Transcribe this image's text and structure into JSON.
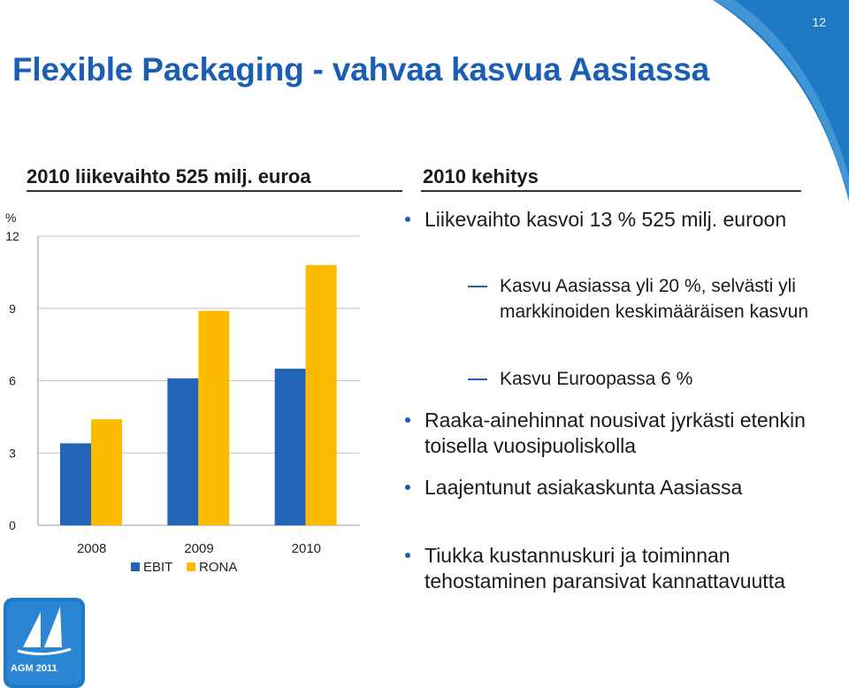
{
  "page": {
    "slide_number": "12",
    "title": "Flexible Packaging - vahvaa kasvua Aasiassa",
    "footer": "AGM 2011"
  },
  "colors": {
    "title_blue": "#1b5fb4",
    "ebit_blue": "#2264b8",
    "rona_yellow": "#fdbb00",
    "deco_blue": "#1f7ac6"
  },
  "left": {
    "heading": "2010 liikevaihto 525 milj. euroa"
  },
  "right": {
    "heading": "2010 kehitys",
    "bullets": [
      {
        "text": "Liikevaihto kasvoi 13 % 525 milj. euroon",
        "subs": [
          "Kasvu Aasiassa yli 20 %, selvästi yli markkinoiden keskimääräisen kasvun",
          "Kasvu Euroopassa 6 %"
        ]
      },
      {
        "text": "Raaka-ainehinnat nousivat jyrkästi etenkin toisella vuosipuoliskolla"
      },
      {
        "text": "Laajentunut asiakaskunta Aasiassa"
      },
      {
        "text": "Tiukka kustannuskuri ja toiminnan tehostaminen paransivat kannattavuutta"
      }
    ]
  },
  "icons": {
    "logo": "sailboat-logo-icon"
  },
  "chart_data": {
    "type": "bar",
    "categories": [
      "2008",
      "2009",
      "2010"
    ],
    "series": [
      {
        "name": "EBIT",
        "values": [
          3.4,
          6.1,
          6.5
        ]
      },
      {
        "name": "RONA",
        "values": [
          4.4,
          8.9,
          10.8
        ]
      }
    ],
    "yunit": "%",
    "ylim": [
      0,
      12
    ],
    "yticks": [
      0,
      3,
      6,
      9,
      12
    ],
    "grid": true,
    "legend": "bottom"
  }
}
